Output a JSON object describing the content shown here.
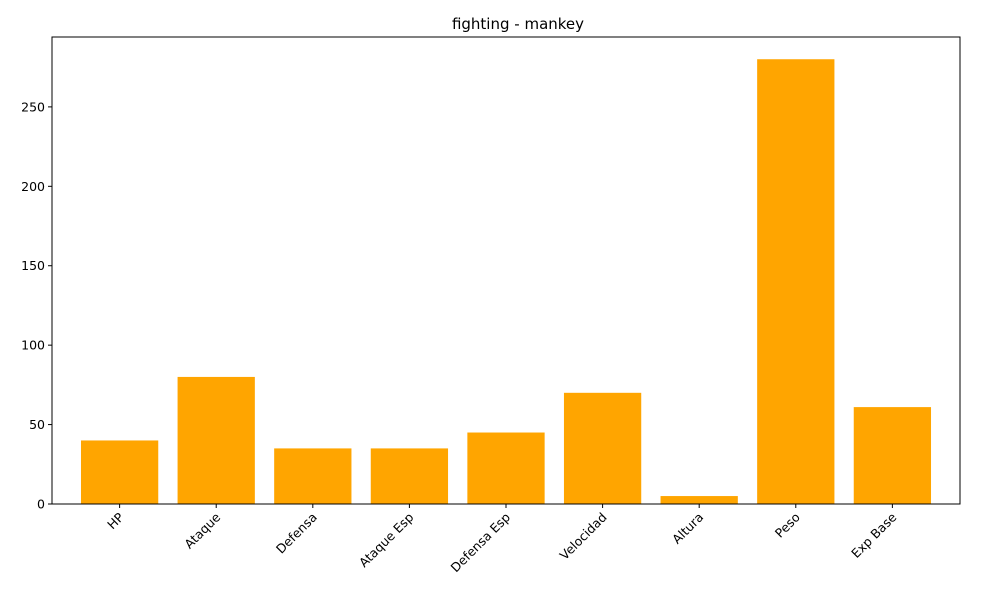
{
  "chart_data": {
    "type": "bar",
    "title": "fighting - mankey",
    "xlabel": "",
    "ylabel": "",
    "categories": [
      "HP",
      "Ataque",
      "Defensa",
      "Ataque Esp",
      "Defensa Esp",
      "Velocidad",
      "Altura",
      "Peso",
      "Exp Base"
    ],
    "values": [
      40,
      80,
      35,
      35,
      45,
      70,
      5,
      280,
      61
    ],
    "ylim": [
      0,
      294
    ],
    "yticks": [
      0,
      50,
      100,
      150,
      200,
      250
    ],
    "bar_color": "#FFA500",
    "grid": false,
    "legend": "none"
  }
}
